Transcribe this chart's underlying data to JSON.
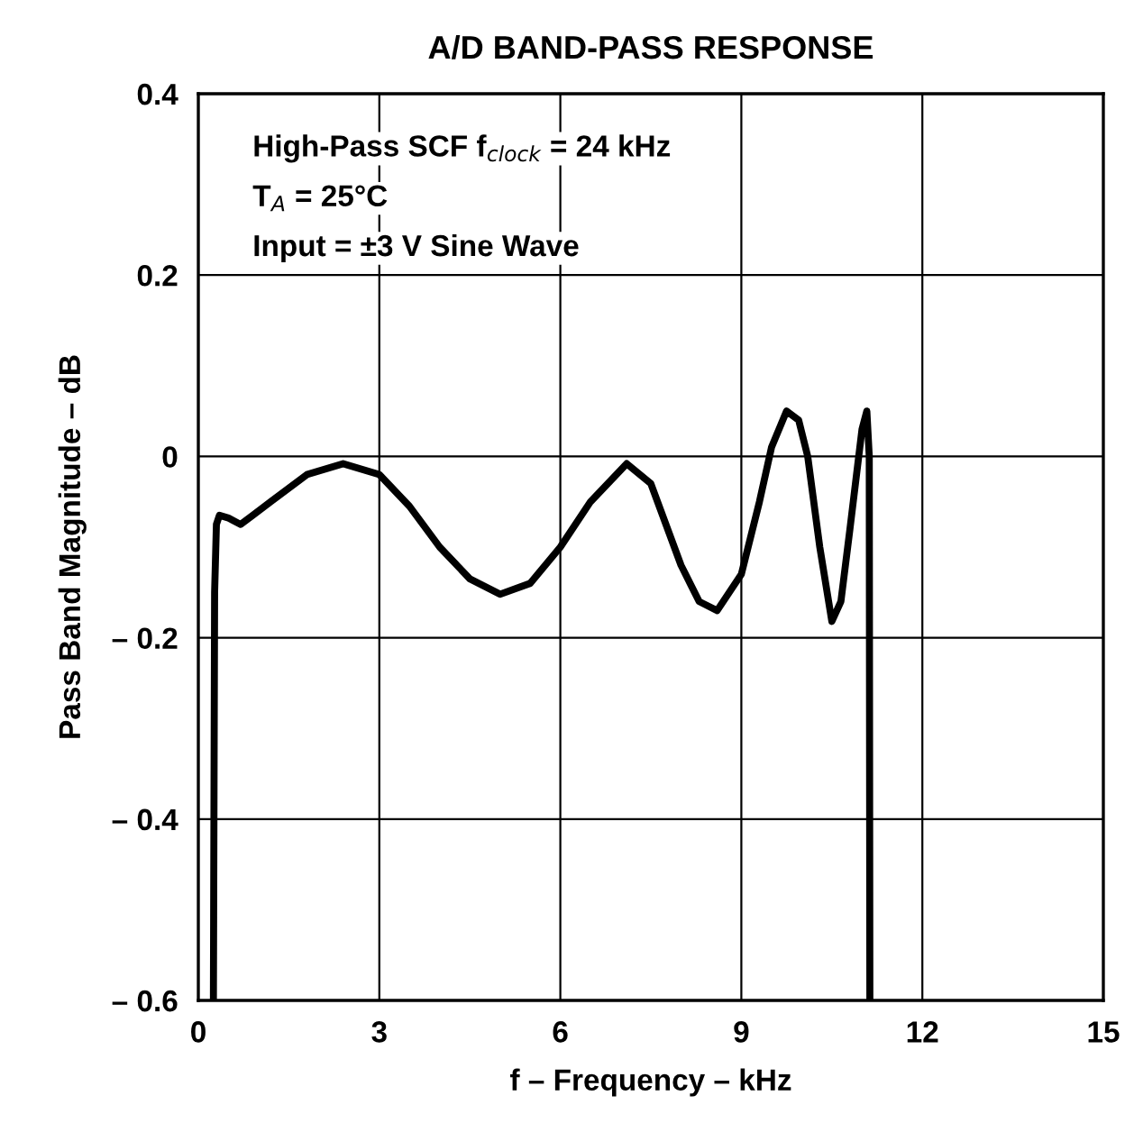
{
  "chart_data": {
    "type": "line",
    "title": "A/D BAND-PASS RESPONSE",
    "xlabel": "f – Frequency – kHz",
    "ylabel": "Pass Band Magnitude – dB",
    "annotations": [
      "High-Pass SCF f$_{clock}$ = 24 kHz",
      "T$_{A}$ = 25°C",
      "Input = ±3 V Sine Wave"
    ],
    "series": [
      {
        "color": "#000000",
        "x": [
          0.25,
          0.27,
          0.3,
          0.35,
          0.5,
          0.7,
          0.9,
          1.2,
          1.8,
          2.4,
          3.0,
          3.5,
          4.0,
          4.5,
          5.0,
          5.5,
          6.0,
          6.5,
          7.1,
          7.5,
          8.0,
          8.3,
          8.6,
          9.0,
          9.3,
          9.5,
          9.75,
          9.95,
          10.1,
          10.3,
          10.5,
          10.65,
          10.8,
          11.0,
          11.08,
          11.12,
          11.13
        ],
        "values": [
          -0.6,
          -0.15,
          -0.075,
          -0.065,
          -0.068,
          -0.075,
          -0.065,
          -0.05,
          -0.02,
          -0.008,
          -0.02,
          -0.055,
          -0.1,
          -0.135,
          -0.152,
          -0.14,
          -0.1,
          -0.05,
          -0.008,
          -0.03,
          -0.12,
          -0.16,
          -0.17,
          -0.13,
          -0.05,
          0.01,
          0.05,
          0.04,
          0.0,
          -0.1,
          -0.182,
          -0.16,
          -0.08,
          0.03,
          0.05,
          0.0,
          -0.6
        ]
      }
    ],
    "xlim": [
      0,
      15
    ],
    "xticks": [
      0,
      3,
      6,
      9,
      12,
      15
    ],
    "ylim": [
      -0.6,
      0.4
    ],
    "yticks": [
      {
        "value": -0.6,
        "label": "– 0.6"
      },
      {
        "value": -0.4,
        "label": "– 0.4"
      },
      {
        "value": -0.2,
        "label": "– 0.2"
      },
      {
        "value": 0,
        "label": "0"
      },
      {
        "value": 0.2,
        "label": "0.2"
      },
      {
        "value": 0.4,
        "label": "0.4"
      }
    ],
    "grid": true,
    "legend": false,
    "marker": "none",
    "line_style": "solid"
  }
}
